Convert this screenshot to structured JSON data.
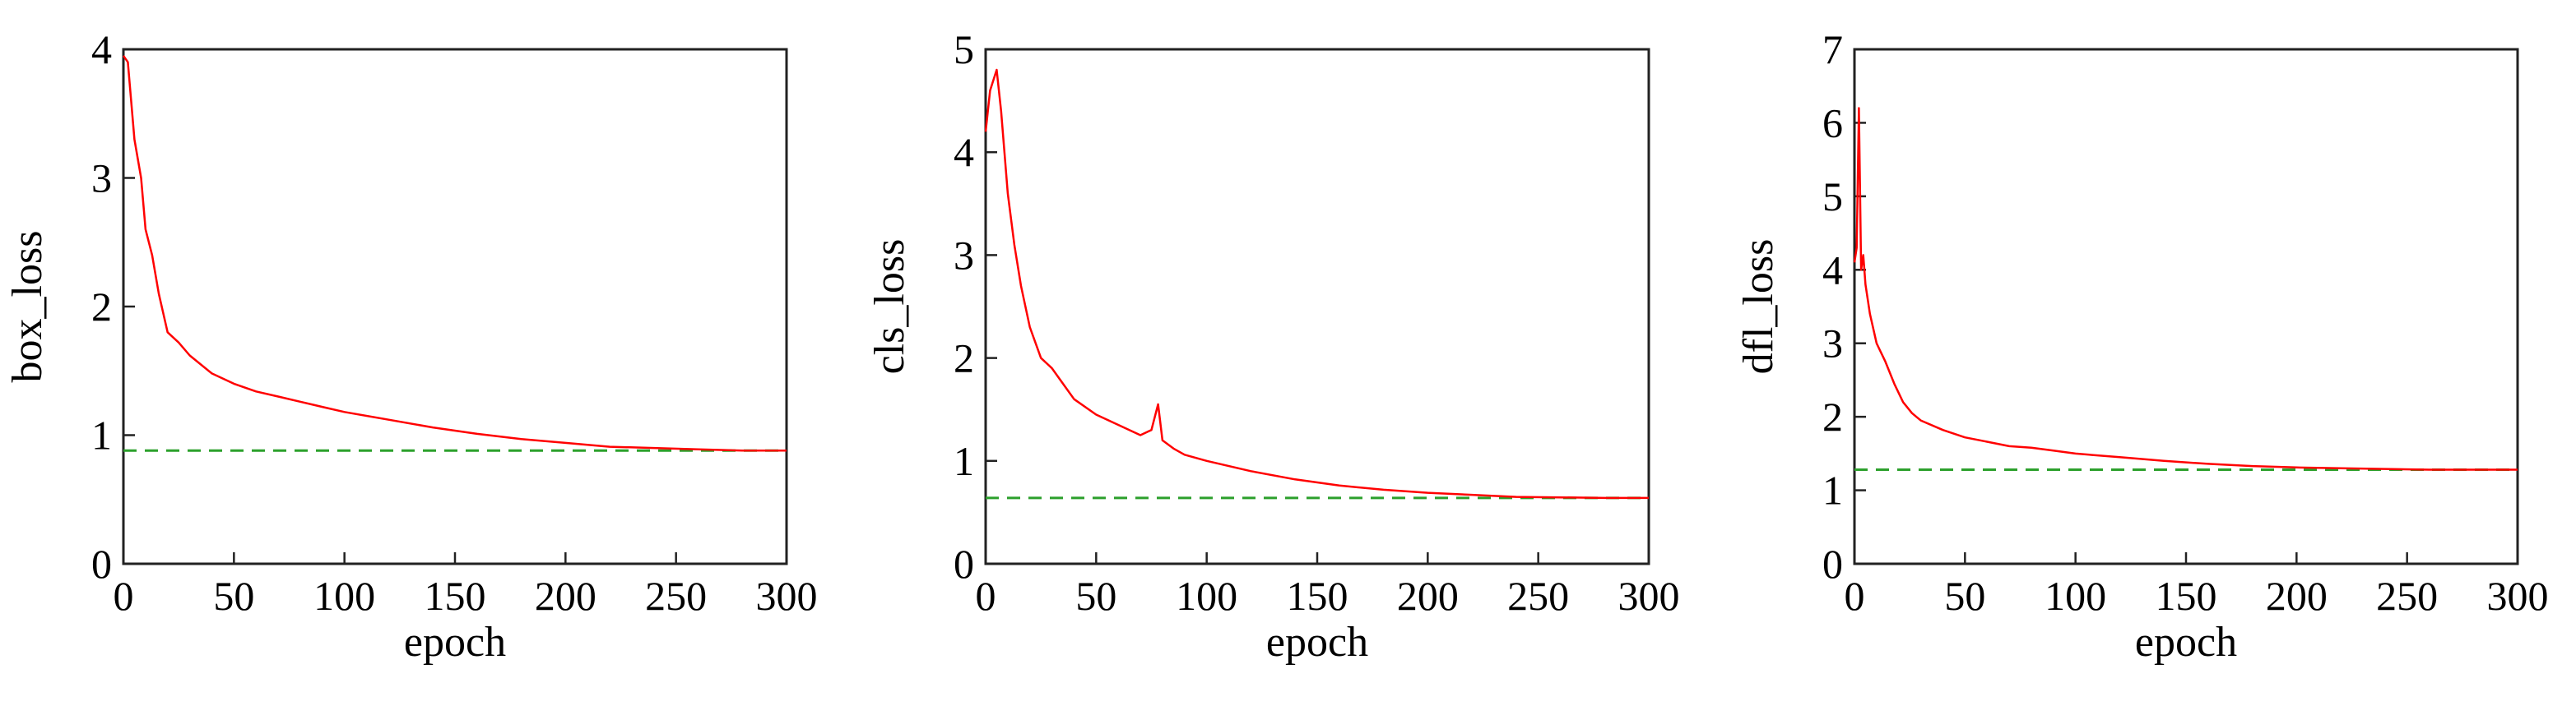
{
  "chart_data": [
    {
      "type": "line",
      "xlabel": "epoch",
      "ylabel": "box_loss",
      "xlim": [
        0,
        300
      ],
      "ylim": [
        0,
        4
      ],
      "xticks": [
        0,
        50,
        100,
        150,
        200,
        250,
        300
      ],
      "yticks": [
        0,
        1,
        2,
        3,
        4
      ],
      "reference_line": 0.88,
      "series": [
        {
          "color": "#ff0000",
          "x": [
            0,
            2,
            5,
            8,
            10,
            13,
            16,
            20,
            25,
            30,
            40,
            50,
            60,
            70,
            80,
            90,
            100,
            120,
            140,
            160,
            180,
            200,
            220,
            240,
            260,
            280,
            300
          ],
          "values": [
            3.95,
            3.9,
            3.3,
            3.0,
            2.6,
            2.4,
            2.1,
            1.8,
            1.72,
            1.62,
            1.48,
            1.4,
            1.34,
            1.3,
            1.26,
            1.22,
            1.18,
            1.12,
            1.06,
            1.01,
            0.97,
            0.94,
            0.91,
            0.9,
            0.89,
            0.88,
            0.88
          ]
        }
      ]
    },
    {
      "type": "line",
      "xlabel": "epoch",
      "ylabel": "cls_loss",
      "xlim": [
        0,
        300
      ],
      "ylim": [
        0,
        5
      ],
      "xticks": [
        0,
        50,
        100,
        150,
        200,
        250,
        300
      ],
      "yticks": [
        0,
        1,
        2,
        3,
        4,
        5
      ],
      "reference_line": 0.64,
      "series": [
        {
          "color": "#ff0000",
          "x": [
            0,
            2,
            5,
            7,
            10,
            13,
            16,
            20,
            25,
            30,
            35,
            40,
            50,
            60,
            70,
            75,
            78,
            80,
            85,
            90,
            100,
            120,
            140,
            160,
            180,
            200,
            220,
            240,
            260,
            280,
            300
          ],
          "values": [
            4.2,
            4.6,
            4.8,
            4.4,
            3.6,
            3.1,
            2.7,
            2.3,
            2.0,
            1.9,
            1.75,
            1.6,
            1.45,
            1.35,
            1.25,
            1.3,
            1.55,
            1.2,
            1.12,
            1.06,
            1.0,
            0.9,
            0.82,
            0.76,
            0.72,
            0.69,
            0.67,
            0.65,
            0.645,
            0.64,
            0.64
          ]
        }
      ]
    },
    {
      "type": "line",
      "xlabel": "epoch",
      "ylabel": "dfl_loss",
      "xlim": [
        0,
        300
      ],
      "ylim": [
        0,
        7
      ],
      "xticks": [
        0,
        50,
        100,
        150,
        200,
        250,
        300
      ],
      "yticks": [
        0,
        1,
        2,
        3,
        4,
        5,
        6,
        7
      ],
      "reference_line": 1.28,
      "series": [
        {
          "color": "#ff0000",
          "x": [
            0,
            1,
            2,
            3,
            4,
            5,
            7,
            10,
            14,
            18,
            22,
            26,
            30,
            40,
            50,
            60,
            70,
            80,
            90,
            100,
            120,
            140,
            160,
            180,
            200,
            220,
            240,
            260,
            280,
            300
          ],
          "values": [
            4.1,
            4.3,
            6.2,
            4.0,
            4.2,
            3.8,
            3.4,
            3.0,
            2.75,
            2.45,
            2.2,
            2.05,
            1.95,
            1.82,
            1.72,
            1.66,
            1.6,
            1.58,
            1.54,
            1.5,
            1.45,
            1.4,
            1.36,
            1.33,
            1.31,
            1.3,
            1.29,
            1.28,
            1.28,
            1.28
          ]
        }
      ]
    }
  ]
}
